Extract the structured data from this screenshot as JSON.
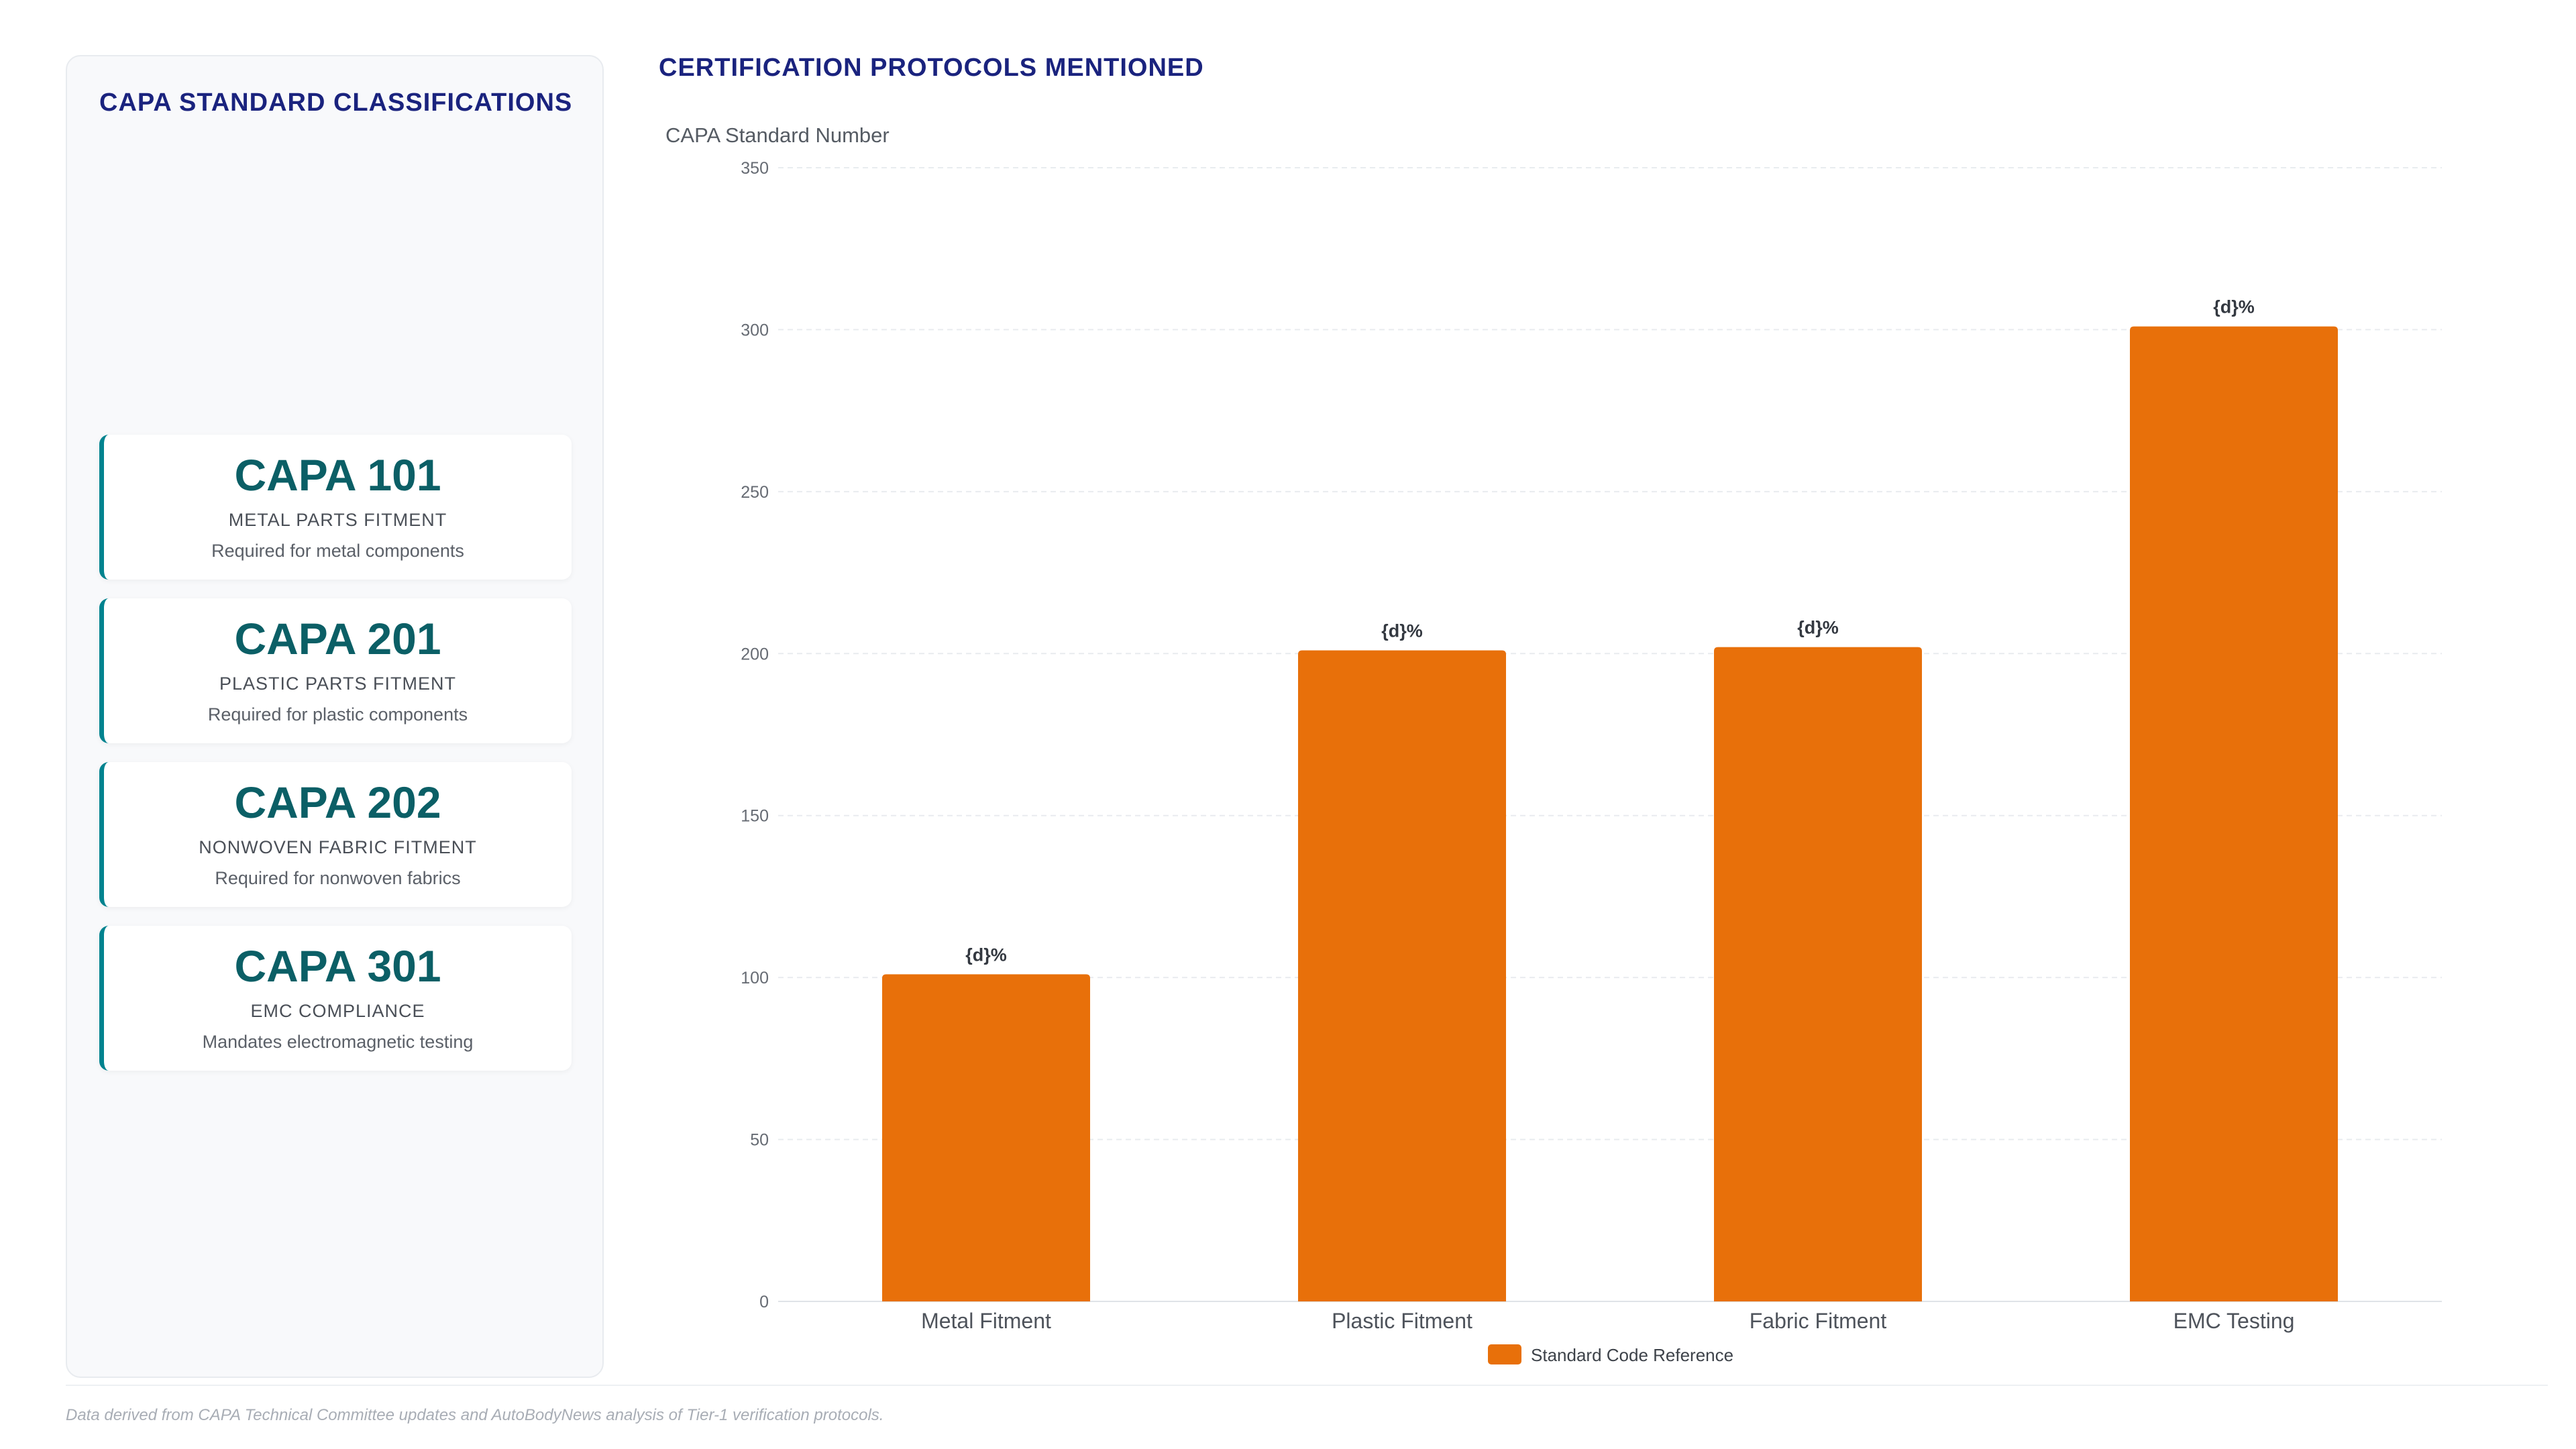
{
  "panel": {
    "title": "CAPA STANDARD CLASSIFICATIONS",
    "cards": [
      {
        "code": "CAPA 101",
        "name": "METAL PARTS FITMENT",
        "desc": "Required for metal components"
      },
      {
        "code": "CAPA 201",
        "name": "PLASTIC PARTS FITMENT",
        "desc": "Required for plastic components"
      },
      {
        "code": "CAPA 202",
        "name": "NONWOVEN FABRIC FITMENT",
        "desc": "Required for nonwoven fabrics"
      },
      {
        "code": "CAPA 301",
        "name": "EMC COMPLIANCE",
        "desc": "Mandates electromagnetic testing"
      }
    ]
  },
  "chart_title": "CERTIFICATION PROTOCOLS MENTIONED",
  "footnote": "Data derived from CAPA Technical Committee updates and AutoBodyNews analysis of Tier-1 verification protocols.",
  "colors": {
    "bar": "#e8700a",
    "accent": "#00838f",
    "title": "#1a237e"
  },
  "chart_data": {
    "type": "bar",
    "title": "",
    "ylabel": "CAPA Standard Number",
    "xlabel": "",
    "categories": [
      "Metal Fitment",
      "Plastic Fitment",
      "Fabric Fitment",
      "EMC Testing"
    ],
    "series": [
      {
        "name": "Standard Code Reference",
        "values": [
          101,
          201,
          202,
          301
        ]
      }
    ],
    "data_labels": [
      "{d}%",
      "{d}%",
      "{d}%",
      "{d}%"
    ],
    "ylim": [
      0,
      350
    ],
    "yticks": [
      0,
      50,
      100,
      150,
      200,
      250,
      300,
      350
    ],
    "grid": true,
    "legend": "bottom-center"
  }
}
